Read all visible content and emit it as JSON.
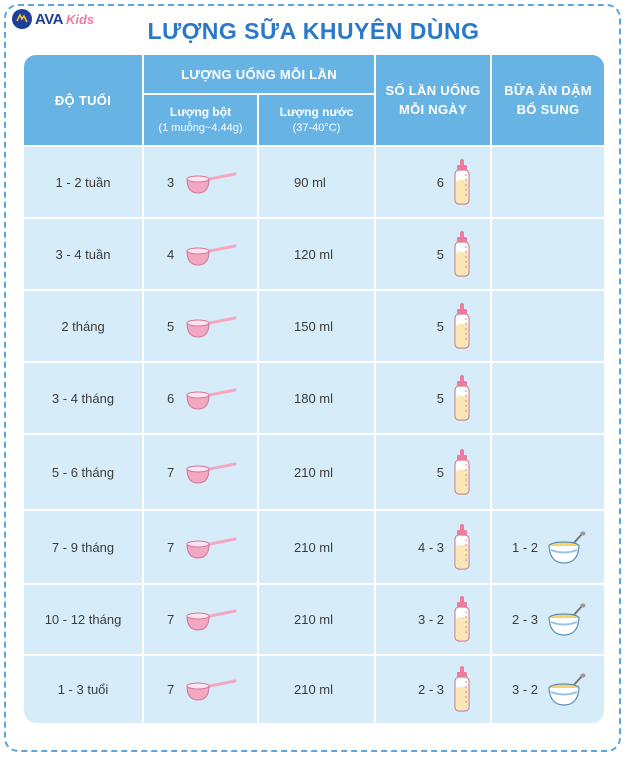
{
  "brand": {
    "name_part1": "AVA",
    "name_part2": "Kids"
  },
  "title": "LƯỢNG SỮA KHUYÊN DÙNG",
  "headers": {
    "age": "ĐỘ TUỔI",
    "per_feed": "LƯỢNG UỐNG MỖI LẦN",
    "powder": "Lượng bột",
    "powder_note": "(1 muỗng~4.44g)",
    "water": "Lượng nước",
    "water_note": "(37-40°C)",
    "times_line1": "SỐ LẦN UỐNG",
    "times_line2": "MỖI NGÀY",
    "solid_line1": "BỮA ĂN DẶM",
    "solid_line2": "BỔ SUNG"
  },
  "rows": [
    {
      "age": "1 - 2 tuần",
      "scoops": "3",
      "water": "90 ml",
      "times": "6",
      "solids": ""
    },
    {
      "age": "3 - 4 tuần",
      "scoops": "4",
      "water": "120 ml",
      "times": "5",
      "solids": ""
    },
    {
      "age": "2 tháng",
      "scoops": "5",
      "water": "150 ml",
      "times": "5",
      "solids": ""
    },
    {
      "age": "3 - 4 tháng",
      "scoops": "6",
      "water": "180 ml",
      "times": "5",
      "solids": ""
    },
    {
      "age": "5 - 6 tháng",
      "scoops": "7",
      "water": "210 ml",
      "times": "5",
      "solids": ""
    },
    {
      "age": "7 - 9 tháng",
      "scoops": "7",
      "water": "210 ml",
      "times": "4 - 3",
      "solids": "1 - 2"
    },
    {
      "age": "10 - 12 tháng",
      "scoops": "7",
      "water": "210 ml",
      "times": "3 - 2",
      "solids": "2 - 3"
    },
    {
      "age": "1 - 3 tuổi",
      "scoops": "7",
      "water": "210 ml",
      "times": "2 - 3",
      "solids": "3 - 2"
    }
  ],
  "icons": {
    "logo": "globe-logo-icon",
    "scoop": "scoop-icon",
    "bottle": "baby-bottle-icon",
    "bowl": "porridge-bowl-icon"
  },
  "colors": {
    "title": "#2a78c8",
    "header_bg": "#67b3e4",
    "body_bg": "#d6ecf9",
    "scoop": "#f4a7c1",
    "bottle_milk": "#fbe7b5",
    "bottle_cap": "#f07aa0"
  }
}
